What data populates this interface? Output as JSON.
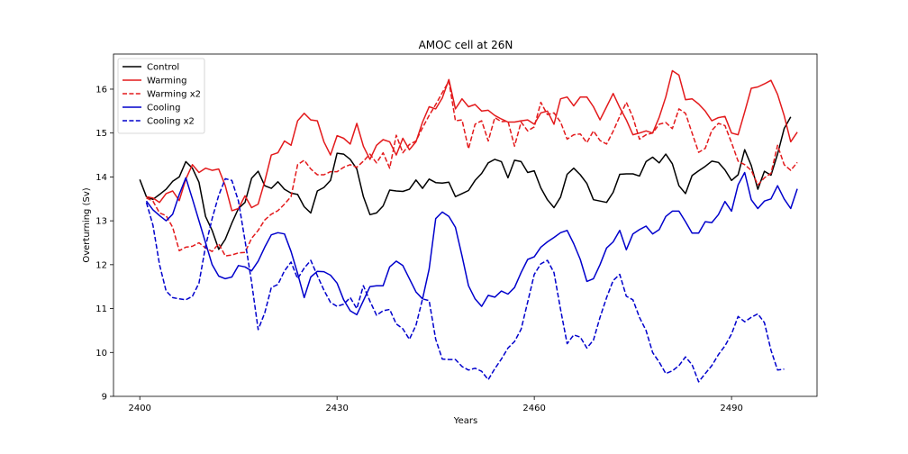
{
  "chart_data": {
    "type": "line",
    "title": "AMOC cell at 26N",
    "xlabel": "Years",
    "ylabel": "Overturning (Sv)",
    "xlim": [
      2396,
      2503
    ],
    "ylim": [
      9,
      16.8
    ],
    "xticks": [
      2400,
      2430,
      2460,
      2490
    ],
    "yticks": [
      9,
      10,
      11,
      12,
      13,
      14,
      15,
      16
    ],
    "grid": false,
    "legend_position": "top-left",
    "series": [
      {
        "name": "Control",
        "color": "#000000",
        "dash": "solid",
        "x": [
          2400,
          2401,
          2402,
          2403,
          2404,
          2405,
          2406,
          2407,
          2408,
          2409,
          2410,
          2411,
          2412,
          2413,
          2414,
          2415,
          2416,
          2417,
          2418,
          2419,
          2420,
          2421,
          2422,
          2423,
          2424,
          2425,
          2426,
          2427,
          2428,
          2429,
          2430,
          2431,
          2432,
          2433,
          2434,
          2435,
          2436,
          2437,
          2438,
          2439,
          2440,
          2441,
          2442,
          2443,
          2444,
          2445,
          2446,
          2447,
          2448,
          2449,
          2450,
          2451,
          2452,
          2453,
          2454,
          2455,
          2456,
          2457,
          2458,
          2459,
          2460,
          2461,
          2462,
          2463,
          2464,
          2465,
          2466,
          2467,
          2468,
          2469,
          2470,
          2471,
          2472,
          2473,
          2474,
          2475,
          2476,
          2477,
          2478,
          2479,
          2480,
          2481,
          2482,
          2483,
          2484,
          2485,
          2486,
          2487,
          2488,
          2489,
          2490,
          2491,
          2492,
          2493,
          2494,
          2495,
          2496,
          2497,
          2498,
          2499,
          2500
        ],
        "values": [
          13.94,
          13.55,
          13.49,
          13.6,
          13.72,
          13.9,
          14.0,
          14.35,
          14.2,
          13.88,
          13.1,
          12.78,
          12.35,
          12.58,
          12.95,
          13.28,
          13.42,
          13.97,
          14.13,
          13.8,
          13.74,
          13.89,
          13.72,
          13.63,
          13.6,
          13.32,
          13.18,
          13.68,
          13.76,
          13.92,
          14.54,
          14.52,
          14.4,
          14.18,
          13.55,
          13.14,
          13.18,
          13.34,
          13.7,
          13.68,
          13.67,
          13.72,
          13.93,
          13.74,
          13.95,
          13.87,
          13.86,
          13.88,
          13.55,
          13.62,
          13.69,
          13.92,
          14.08,
          14.32,
          14.4,
          14.35,
          13.98,
          14.38,
          14.35,
          14.1,
          14.14,
          13.75,
          13.48,
          13.3,
          13.54,
          14.06,
          14.2,
          14.05,
          13.85,
          13.48,
          13.45,
          13.42,
          13.65,
          14.06,
          14.07,
          14.07,
          14.02,
          14.35,
          14.45,
          14.32,
          14.52,
          14.3,
          13.8,
          13.62,
          14.03,
          14.14,
          14.24,
          14.36,
          14.33,
          14.16,
          13.92,
          14.05,
          14.62,
          14.26,
          13.72,
          14.13,
          14.04,
          14.52,
          15.1,
          15.37,
          null
        ]
      },
      {
        "name": "Warming",
        "color": "#e31a1c",
        "dash": "solid",
        "x": [
          2401,
          2402,
          2403,
          2404,
          2405,
          2406,
          2407,
          2408,
          2409,
          2410,
          2411,
          2412,
          2413,
          2414,
          2415,
          2416,
          2417,
          2418,
          2419,
          2420,
          2421,
          2422,
          2423,
          2424,
          2425,
          2426,
          2427,
          2428,
          2429,
          2430,
          2431,
          2432,
          2433,
          2434,
          2435,
          2436,
          2437,
          2438,
          2439,
          2440,
          2441,
          2442,
          2443,
          2444,
          2445,
          2446,
          2447,
          2448,
          2449,
          2450,
          2451,
          2452,
          2453,
          2454,
          2455,
          2456,
          2457,
          2458,
          2459,
          2460,
          2461,
          2462,
          2463,
          2464,
          2465,
          2466,
          2467,
          2468,
          2469,
          2470,
          2471,
          2472,
          2473,
          2474,
          2475,
          2476,
          2477,
          2478,
          2479,
          2480,
          2481,
          2482,
          2483,
          2484,
          2485,
          2486,
          2487,
          2488,
          2489,
          2490,
          2491,
          2492,
          2493,
          2494,
          2495,
          2496,
          2497,
          2498,
          2499,
          2500
        ],
        "values": [
          13.55,
          13.52,
          13.42,
          13.62,
          13.68,
          13.46,
          13.95,
          14.28,
          14.1,
          14.2,
          14.15,
          14.18,
          13.8,
          13.23,
          13.28,
          13.57,
          13.3,
          13.38,
          13.9,
          14.5,
          14.55,
          14.82,
          14.72,
          15.28,
          15.45,
          15.3,
          15.28,
          14.8,
          14.5,
          14.94,
          14.88,
          14.75,
          15.22,
          14.7,
          14.4,
          14.72,
          14.85,
          14.8,
          14.5,
          14.88,
          14.62,
          14.8,
          15.25,
          15.6,
          15.55,
          15.8,
          16.22,
          15.55,
          15.78,
          15.6,
          15.65,
          15.5,
          15.52,
          15.4,
          15.32,
          15.25,
          15.25,
          15.28,
          15.3,
          15.2,
          15.46,
          15.5,
          15.2,
          15.78,
          15.82,
          15.62,
          15.82,
          15.82,
          15.6,
          15.3,
          15.6,
          15.9,
          15.58,
          15.3,
          14.96,
          15.0,
          15.05,
          15.0,
          15.36,
          15.82,
          16.42,
          16.32,
          15.76,
          15.78,
          15.66,
          15.5,
          15.28,
          15.35,
          15.38,
          15.0,
          14.96,
          15.48,
          16.02,
          16.05,
          16.12,
          16.2,
          15.88,
          15.4,
          14.8,
          15.02
        ]
      },
      {
        "name": "Warming x2",
        "color": "#e31a1c",
        "dash": "dashed",
        "x": [
          2401,
          2402,
          2403,
          2404,
          2405,
          2406,
          2407,
          2408,
          2409,
          2410,
          2411,
          2412,
          2413,
          2414,
          2415,
          2416,
          2417,
          2418,
          2419,
          2420,
          2421,
          2422,
          2423,
          2424,
          2425,
          2426,
          2427,
          2428,
          2429,
          2430,
          2431,
          2432,
          2433,
          2434,
          2435,
          2436,
          2437,
          2438,
          2439,
          2440,
          2441,
          2442,
          2443,
          2444,
          2445,
          2446,
          2447,
          2448,
          2449,
          2450,
          2451,
          2452,
          2453,
          2454,
          2455,
          2456,
          2457,
          2458,
          2459,
          2460,
          2461,
          2462,
          2463,
          2464,
          2465,
          2466,
          2467,
          2468,
          2469,
          2470,
          2471,
          2472,
          2473,
          2474,
          2475,
          2476,
          2477,
          2478,
          2479,
          2480,
          2481,
          2482,
          2483,
          2484,
          2485,
          2486,
          2487,
          2488,
          2489,
          2490,
          2491,
          2492,
          2493,
          2494,
          2495,
          2496,
          2497,
          2498,
          2499,
          2500
        ],
        "values": [
          13.52,
          13.45,
          13.18,
          13.12,
          12.85,
          12.32,
          12.4,
          12.42,
          12.5,
          12.38,
          12.3,
          12.48,
          12.2,
          12.22,
          12.27,
          12.28,
          12.6,
          12.78,
          13.02,
          13.15,
          13.23,
          13.38,
          13.55,
          14.28,
          14.38,
          14.18,
          14.05,
          14.05,
          14.12,
          14.12,
          14.22,
          14.28,
          14.22,
          14.36,
          14.52,
          14.32,
          14.55,
          14.2,
          14.95,
          14.55,
          14.74,
          14.82,
          15.12,
          15.4,
          15.65,
          15.92,
          16.18,
          15.28,
          15.3,
          14.64,
          15.2,
          15.28,
          14.82,
          15.35,
          15.26,
          15.27,
          14.7,
          15.25,
          15.05,
          15.14,
          15.7,
          15.42,
          15.46,
          15.25,
          14.86,
          14.96,
          14.98,
          14.78,
          15.05,
          14.83,
          14.75,
          15.04,
          15.38,
          15.7,
          15.36,
          14.86,
          14.96,
          15.0,
          15.2,
          15.24,
          15.1,
          15.55,
          15.45,
          15.0,
          14.56,
          14.65,
          15.06,
          15.22,
          15.17,
          14.78,
          14.36,
          14.28,
          14.15,
          13.82,
          13.98,
          14.08,
          14.72,
          14.28,
          14.15,
          14.33
        ]
      },
      {
        "name": "Cooling",
        "color": "#0000cc",
        "dash": "solid",
        "x": [
          2401,
          2402,
          2403,
          2404,
          2405,
          2406,
          2407,
          2408,
          2409,
          2410,
          2411,
          2412,
          2413,
          2414,
          2415,
          2416,
          2417,
          2418,
          2419,
          2420,
          2421,
          2422,
          2423,
          2424,
          2425,
          2426,
          2427,
          2428,
          2429,
          2430,
          2431,
          2432,
          2433,
          2434,
          2435,
          2436,
          2437,
          2438,
          2439,
          2440,
          2441,
          2442,
          2443,
          2444,
          2445,
          2446,
          2447,
          2448,
          2449,
          2450,
          2451,
          2452,
          2453,
          2454,
          2455,
          2456,
          2457,
          2458,
          2459,
          2460,
          2461,
          2462,
          2463,
          2464,
          2465,
          2466,
          2467,
          2468,
          2469,
          2470,
          2471,
          2472,
          2473,
          2474,
          2475,
          2476,
          2477,
          2478,
          2479,
          2480,
          2481,
          2482,
          2483,
          2484,
          2485,
          2486,
          2487,
          2488,
          2489,
          2490,
          2491,
          2492,
          2493,
          2494,
          2495,
          2496,
          2497,
          2498,
          2499,
          2500
        ],
        "values": [
          13.45,
          13.25,
          13.12,
          13.0,
          13.15,
          13.6,
          13.98,
          13.5,
          13.0,
          12.5,
          12.0,
          11.74,
          11.68,
          11.72,
          11.98,
          11.95,
          11.86,
          12.08,
          12.4,
          12.68,
          12.73,
          12.7,
          12.3,
          11.8,
          11.25,
          11.72,
          11.85,
          11.84,
          11.76,
          11.58,
          11.2,
          10.95,
          10.86,
          11.18,
          11.5,
          11.52,
          11.52,
          11.95,
          12.08,
          11.98,
          11.68,
          11.38,
          11.22,
          11.9,
          13.05,
          13.2,
          13.1,
          12.85,
          12.2,
          11.52,
          11.22,
          11.05,
          11.3,
          11.26,
          11.4,
          11.33,
          11.48,
          11.82,
          12.12,
          12.18,
          12.4,
          12.52,
          12.62,
          12.73,
          12.78,
          12.48,
          12.12,
          11.62,
          11.68,
          12.0,
          12.38,
          12.52,
          12.78,
          12.34,
          12.7,
          12.8,
          12.88,
          12.7,
          12.8,
          13.1,
          13.22,
          13.22,
          12.98,
          12.72,
          12.72,
          12.98,
          12.96,
          13.14,
          13.44,
          13.22,
          13.82,
          14.1,
          13.48,
          13.28,
          13.45,
          13.5,
          13.8,
          13.5,
          13.28,
          13.73
        ]
      },
      {
        "name": "Cooling x2",
        "color": "#0000cc",
        "dash": "dashed",
        "x": [
          2401,
          2402,
          2403,
          2404,
          2405,
          2406,
          2407,
          2408,
          2409,
          2410,
          2411,
          2412,
          2413,
          2414,
          2415,
          2416,
          2417,
          2418,
          2419,
          2420,
          2421,
          2422,
          2423,
          2424,
          2425,
          2426,
          2427,
          2428,
          2429,
          2430,
          2431,
          2432,
          2433,
          2434,
          2435,
          2436,
          2437,
          2438,
          2439,
          2440,
          2441,
          2442,
          2443,
          2444,
          2445,
          2446,
          2447,
          2448,
          2449,
          2450,
          2451,
          2452,
          2453,
          2454,
          2455,
          2456,
          2457,
          2458,
          2459,
          2460,
          2461,
          2462,
          2463,
          2464,
          2465,
          2466,
          2467,
          2468,
          2469,
          2470,
          2471,
          2472,
          2473,
          2474,
          2475,
          2476,
          2477,
          2478,
          2479,
          2480,
          2481,
          2482,
          2483,
          2484,
          2485,
          2486,
          2487,
          2488,
          2489,
          2490,
          2491,
          2492,
          2493,
          2494,
          2495,
          2496,
          2497,
          2498,
          2499,
          2500
        ],
        "values": [
          13.42,
          12.9,
          12.0,
          11.4,
          11.25,
          11.22,
          11.2,
          11.28,
          11.58,
          12.42,
          13.05,
          13.58,
          13.96,
          13.92,
          13.45,
          12.55,
          11.6,
          10.52,
          10.9,
          11.48,
          11.55,
          11.86,
          12.06,
          11.68,
          11.92,
          12.1,
          11.75,
          11.42,
          11.14,
          11.05,
          11.1,
          11.25,
          11.0,
          11.52,
          11.17,
          10.85,
          10.95,
          10.98,
          10.65,
          10.54,
          10.3,
          10.62,
          11.22,
          11.18,
          10.3,
          9.85,
          9.84,
          9.84,
          9.68,
          9.6,
          9.64,
          9.57,
          9.38,
          9.63,
          9.85,
          10.1,
          10.25,
          10.53,
          11.15,
          11.78,
          12.02,
          12.1,
          11.82,
          10.98,
          10.2,
          10.4,
          10.35,
          10.1,
          10.28,
          10.8,
          11.25,
          11.64,
          11.78,
          11.28,
          11.2,
          10.8,
          10.5,
          10.0,
          9.78,
          9.52,
          9.58,
          9.7,
          9.9,
          9.72,
          9.33,
          9.52,
          9.7,
          9.95,
          10.15,
          10.42,
          10.82,
          10.7,
          10.8,
          10.88,
          10.68,
          10.05,
          9.6,
          9.62,
          null,
          null
        ]
      }
    ]
  }
}
